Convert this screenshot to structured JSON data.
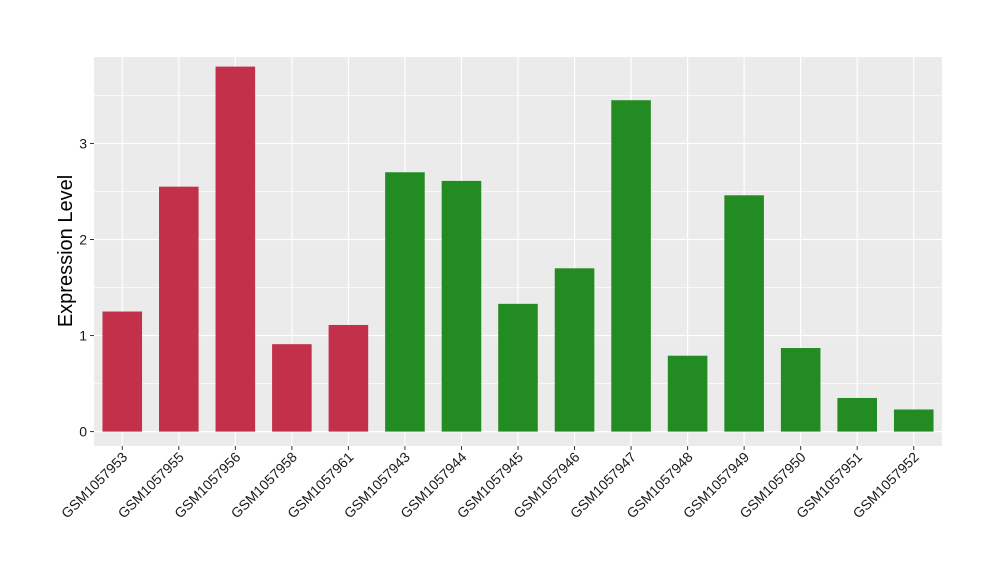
{
  "chart_data": {
    "type": "bar",
    "title": "",
    "xlabel": "",
    "ylabel": "Expression Level",
    "ylim": [
      -0.15,
      3.9
    ],
    "yticks": [
      0,
      1,
      2,
      3
    ],
    "grid": true,
    "colors": {
      "panel": "#ebebeb",
      "grid": "#ffffff",
      "group_1": "#c3304a",
      "group_2": "#228b22"
    },
    "categories": [
      "GSM1057953",
      "GSM1057955",
      "GSM1057956",
      "GSM1057958",
      "GSM1057961",
      "GSM1057943",
      "GSM1057944",
      "GSM1057945",
      "GSM1057946",
      "GSM1057947",
      "GSM1057948",
      "GSM1057949",
      "GSM1057950",
      "GSM1057951",
      "GSM1057952"
    ],
    "values": [
      1.25,
      2.55,
      3.8,
      0.91,
      1.11,
      2.7,
      2.61,
      1.33,
      1.7,
      3.45,
      0.79,
      2.46,
      0.87,
      0.35,
      0.23
    ],
    "groups": [
      1,
      1,
      1,
      1,
      1,
      2,
      2,
      2,
      2,
      2,
      2,
      2,
      2,
      2,
      2
    ]
  }
}
